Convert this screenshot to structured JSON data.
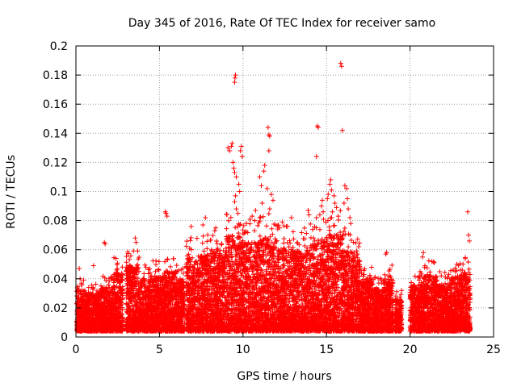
{
  "chart_data": {
    "type": "scatter",
    "title": "Day 345 of 2016, Rate Of TEC Index for receiver samo",
    "xlabel": "GPS time / hours",
    "ylabel": "ROTI / TECUs",
    "xlim": [
      0,
      25
    ],
    "ylim": [
      0,
      0.2
    ],
    "xticks": [
      "0",
      "5",
      "10",
      "15",
      "20",
      "25"
    ],
    "yticks": [
      "0",
      "0.02",
      "0.04",
      "0.06",
      "0.08",
      "0.1",
      "0.12",
      "0.14",
      "0.16",
      "0.18",
      "0.2"
    ],
    "grid": true,
    "marker": "+",
    "marker_color": "#ff0000",
    "outliers": [
      {
        "x": 9.55,
        "y": 0.18
      },
      {
        "x": 9.52,
        "y": 0.178
      },
      {
        "x": 9.5,
        "y": 0.175
      },
      {
        "x": 15.85,
        "y": 0.188
      },
      {
        "x": 15.9,
        "y": 0.186
      },
      {
        "x": 11.5,
        "y": 0.144
      },
      {
        "x": 11.55,
        "y": 0.139
      },
      {
        "x": 11.6,
        "y": 0.138
      },
      {
        "x": 11.55,
        "y": 0.128
      },
      {
        "x": 14.45,
        "y": 0.145
      },
      {
        "x": 14.5,
        "y": 0.144
      },
      {
        "x": 15.95,
        "y": 0.142
      },
      {
        "x": 14.4,
        "y": 0.124
      },
      {
        "x": 9.35,
        "y": 0.133
      },
      {
        "x": 9.3,
        "y": 0.131
      },
      {
        "x": 9.1,
        "y": 0.13
      },
      {
        "x": 9.2,
        "y": 0.128
      },
      {
        "x": 9.9,
        "y": 0.131
      },
      {
        "x": 9.85,
        "y": 0.128
      },
      {
        "x": 9.95,
        "y": 0.124
      },
      {
        "x": 9.4,
        "y": 0.12
      },
      {
        "x": 9.45,
        "y": 0.116
      },
      {
        "x": 9.5,
        "y": 0.113
      },
      {
        "x": 9.6,
        "y": 0.11
      },
      {
        "x": 9.75,
        "y": 0.105
      },
      {
        "x": 9.8,
        "y": 0.1
      },
      {
        "x": 9.55,
        "y": 0.097
      },
      {
        "x": 9.5,
        "y": 0.093
      },
      {
        "x": 9.6,
        "y": 0.088
      },
      {
        "x": 9.7,
        "y": 0.085
      },
      {
        "x": 11.3,
        "y": 0.118
      },
      {
        "x": 11.25,
        "y": 0.114
      },
      {
        "x": 11.0,
        "y": 0.11
      },
      {
        "x": 11.1,
        "y": 0.104
      },
      {
        "x": 11.45,
        "y": 0.102
      },
      {
        "x": 11.7,
        "y": 0.098
      },
      {
        "x": 11.8,
        "y": 0.094
      },
      {
        "x": 11.15,
        "y": 0.092
      },
      {
        "x": 11.6,
        "y": 0.088
      },
      {
        "x": 15.25,
        "y": 0.108
      },
      {
        "x": 15.2,
        "y": 0.105
      },
      {
        "x": 15.3,
        "y": 0.101
      },
      {
        "x": 15.1,
        "y": 0.098
      },
      {
        "x": 15.45,
        "y": 0.097
      },
      {
        "x": 15.05,
        "y": 0.095
      },
      {
        "x": 15.5,
        "y": 0.092
      },
      {
        "x": 15.6,
        "y": 0.089
      },
      {
        "x": 15.35,
        "y": 0.086
      },
      {
        "x": 15.7,
        "y": 0.083
      },
      {
        "x": 16.1,
        "y": 0.104
      },
      {
        "x": 16.2,
        "y": 0.102
      },
      {
        "x": 16.25,
        "y": 0.095
      },
      {
        "x": 16.05,
        "y": 0.092
      },
      {
        "x": 16.3,
        "y": 0.088
      },
      {
        "x": 16.4,
        "y": 0.082
      },
      {
        "x": 16.45,
        "y": 0.078
      },
      {
        "x": 14.7,
        "y": 0.09
      },
      {
        "x": 14.75,
        "y": 0.094
      },
      {
        "x": 14.8,
        "y": 0.086
      },
      {
        "x": 14.6,
        "y": 0.084
      },
      {
        "x": 14.4,
        "y": 0.082
      },
      {
        "x": 13.9,
        "y": 0.087
      },
      {
        "x": 13.95,
        "y": 0.084
      },
      {
        "x": 12.9,
        "y": 0.082
      },
      {
        "x": 12.35,
        "y": 0.079
      },
      {
        "x": 12.6,
        "y": 0.076
      },
      {
        "x": 10.75,
        "y": 0.087
      },
      {
        "x": 10.55,
        "y": 0.083
      },
      {
        "x": 10.7,
        "y": 0.08
      },
      {
        "x": 5.35,
        "y": 0.086
      },
      {
        "x": 5.4,
        "y": 0.085
      },
      {
        "x": 5.45,
        "y": 0.083
      },
      {
        "x": 7.75,
        "y": 0.082
      },
      {
        "x": 7.6,
        "y": 0.077
      },
      {
        "x": 6.9,
        "y": 0.076
      },
      {
        "x": 23.45,
        "y": 0.086
      },
      {
        "x": 23.5,
        "y": 0.07
      },
      {
        "x": 23.55,
        "y": 0.066
      },
      {
        "x": 1.7,
        "y": 0.065
      },
      {
        "x": 1.75,
        "y": 0.064
      },
      {
        "x": 3.55,
        "y": 0.068
      },
      {
        "x": 3.6,
        "y": 0.065
      },
      {
        "x": 18.6,
        "y": 0.058
      },
      {
        "x": 18.55,
        "y": 0.057
      },
      {
        "x": 20.8,
        "y": 0.058
      },
      {
        "x": 20.75,
        "y": 0.055
      },
      {
        "x": 0.2,
        "y": 0.047
      },
      {
        "x": 0.25,
        "y": 0.04
      },
      {
        "x": 1.05,
        "y": 0.049
      },
      {
        "x": 22.8,
        "y": 0.05
      }
    ],
    "envelope": [
      {
        "t0": 0.0,
        "t1": 0.6,
        "max": 0.032
      },
      {
        "t0": 0.6,
        "t1": 1.4,
        "max": 0.03
      },
      {
        "t0": 1.4,
        "t1": 2.2,
        "max": 0.034
      },
      {
        "t0": 2.2,
        "t1": 2.8,
        "max": 0.045
      },
      {
        "t0": 3.0,
        "t1": 3.8,
        "max": 0.05
      },
      {
        "t0": 3.8,
        "t1": 4.6,
        "max": 0.04
      },
      {
        "t0": 4.6,
        "t1": 5.3,
        "max": 0.042
      },
      {
        "t0": 5.3,
        "t1": 6.0,
        "max": 0.045
      },
      {
        "t0": 6.0,
        "t1": 6.5,
        "max": 0.04
      },
      {
        "t0": 6.6,
        "t1": 7.4,
        "max": 0.055
      },
      {
        "t0": 7.4,
        "t1": 8.2,
        "max": 0.058
      },
      {
        "t0": 8.2,
        "t1": 9.0,
        "max": 0.06
      },
      {
        "t0": 9.0,
        "t1": 10.0,
        "max": 0.07
      },
      {
        "t0": 10.0,
        "t1": 11.0,
        "max": 0.065
      },
      {
        "t0": 11.0,
        "t1": 12.0,
        "max": 0.068
      },
      {
        "t0": 12.0,
        "t1": 13.0,
        "max": 0.062
      },
      {
        "t0": 13.0,
        "t1": 14.0,
        "max": 0.06
      },
      {
        "t0": 14.0,
        "t1": 15.0,
        "max": 0.066
      },
      {
        "t0": 15.0,
        "t1": 16.0,
        "max": 0.07
      },
      {
        "t0": 16.0,
        "t1": 17.0,
        "max": 0.06
      },
      {
        "t0": 17.0,
        "t1": 17.8,
        "max": 0.04
      },
      {
        "t0": 17.8,
        "t1": 18.4,
        "max": 0.034
      },
      {
        "t0": 18.4,
        "t1": 19.0,
        "max": 0.04
      },
      {
        "t0": 19.1,
        "t1": 19.5,
        "max": 0.026
      },
      {
        "t0": 20.0,
        "t1": 20.8,
        "max": 0.036
      },
      {
        "t0": 20.8,
        "t1": 21.6,
        "max": 0.042
      },
      {
        "t0": 21.6,
        "t1": 22.4,
        "max": 0.036
      },
      {
        "t0": 22.4,
        "t1": 23.0,
        "max": 0.042
      },
      {
        "t0": 23.0,
        "t1": 23.6,
        "max": 0.045
      }
    ]
  }
}
